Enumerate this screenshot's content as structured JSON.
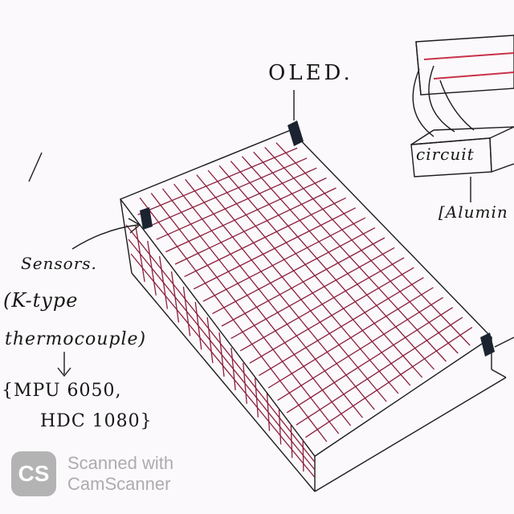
{
  "labels": {
    "oled": "OLED.",
    "circuit": "circuit",
    "aluminium": "[Alumin",
    "sensors": "Sensors.",
    "ktype": "(K-type",
    "thermocouple": "thermocouple)",
    "mpu": "{MPU 6050,",
    "hdc": "HDC 1080}"
  },
  "watermark": {
    "logo": "CS",
    "line1": "Scanned with",
    "line2": "CamScanner"
  },
  "colors": {
    "ink": "#161616",
    "grid": "#8c1f3c",
    "strip": "#c8324a",
    "paper": "#fbf9fb"
  }
}
